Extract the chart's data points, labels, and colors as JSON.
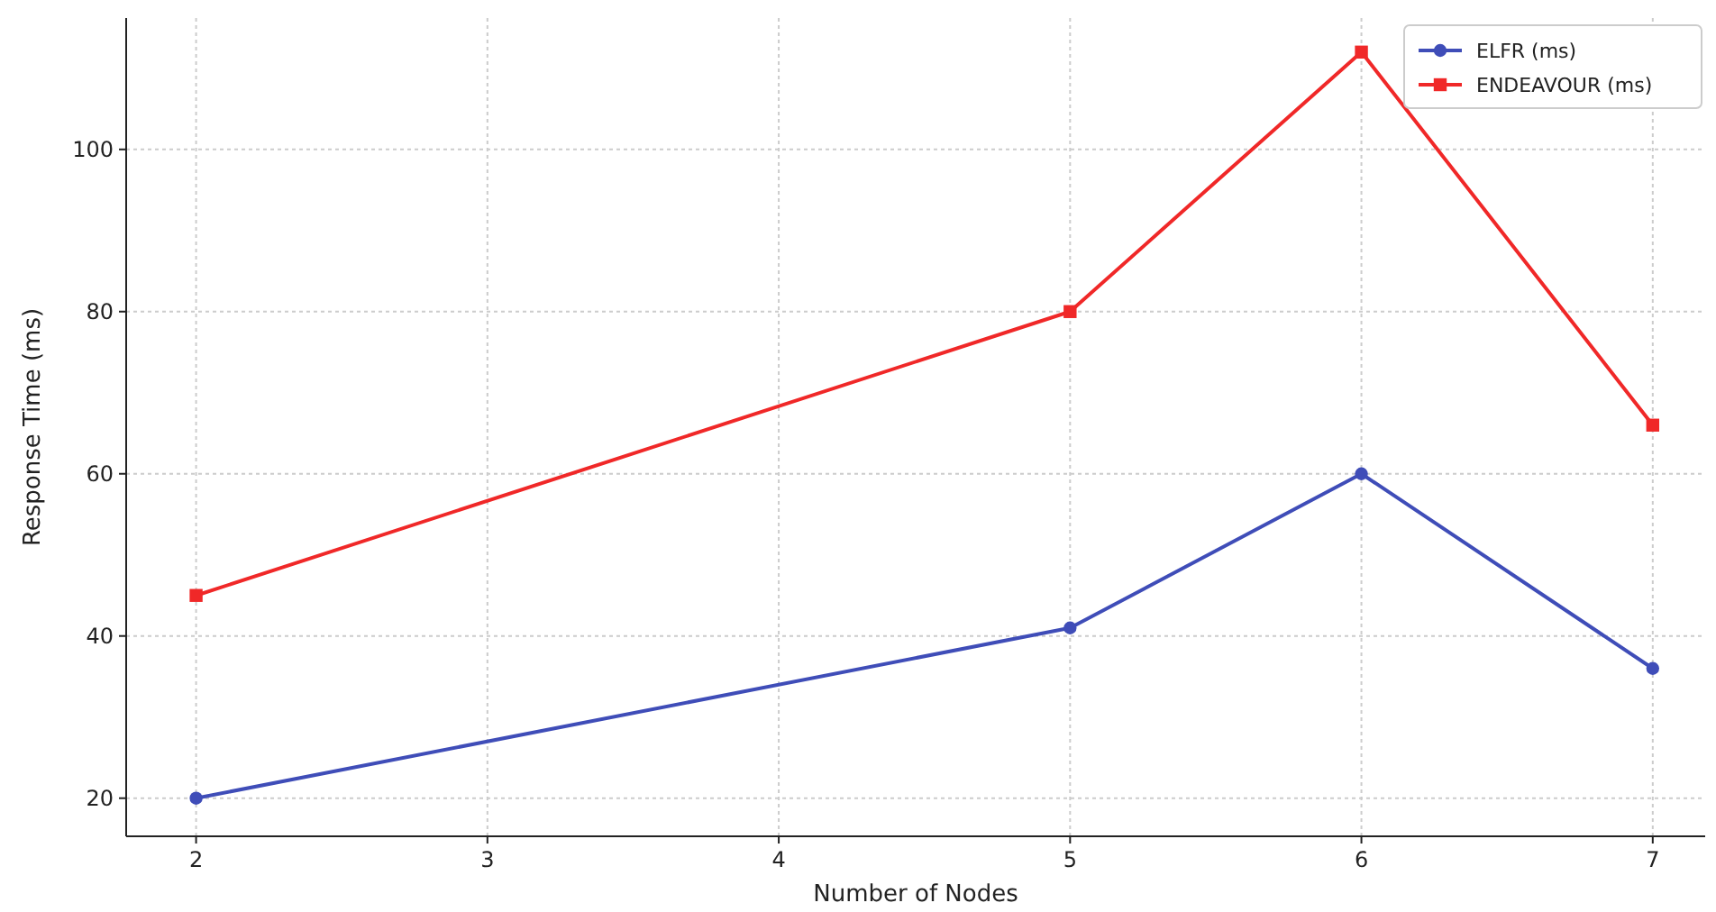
{
  "chart_data": {
    "type": "line",
    "xlabel": "Number of Nodes",
    "ylabel": "Response Time (ms)",
    "x": [
      2,
      5,
      6,
      7
    ],
    "xlim": [
      1.76,
      7.18
    ],
    "ylim": [
      15.3,
      116.2
    ],
    "xticks": [
      2,
      3,
      4,
      5,
      6,
      7
    ],
    "yticks": [
      20,
      40,
      60,
      80,
      100
    ],
    "grid": true,
    "legend": "top right",
    "line_style": "solid",
    "series": [
      {
        "name": "ELFR (ms)",
        "color": "#3f4db8",
        "marker": "circle",
        "values": [
          20,
          41,
          60,
          36
        ]
      },
      {
        "name": "ENDEAVOUR (ms)",
        "color": "#f02828",
        "marker": "square",
        "values": [
          45,
          80,
          112,
          66
        ]
      }
    ]
  }
}
